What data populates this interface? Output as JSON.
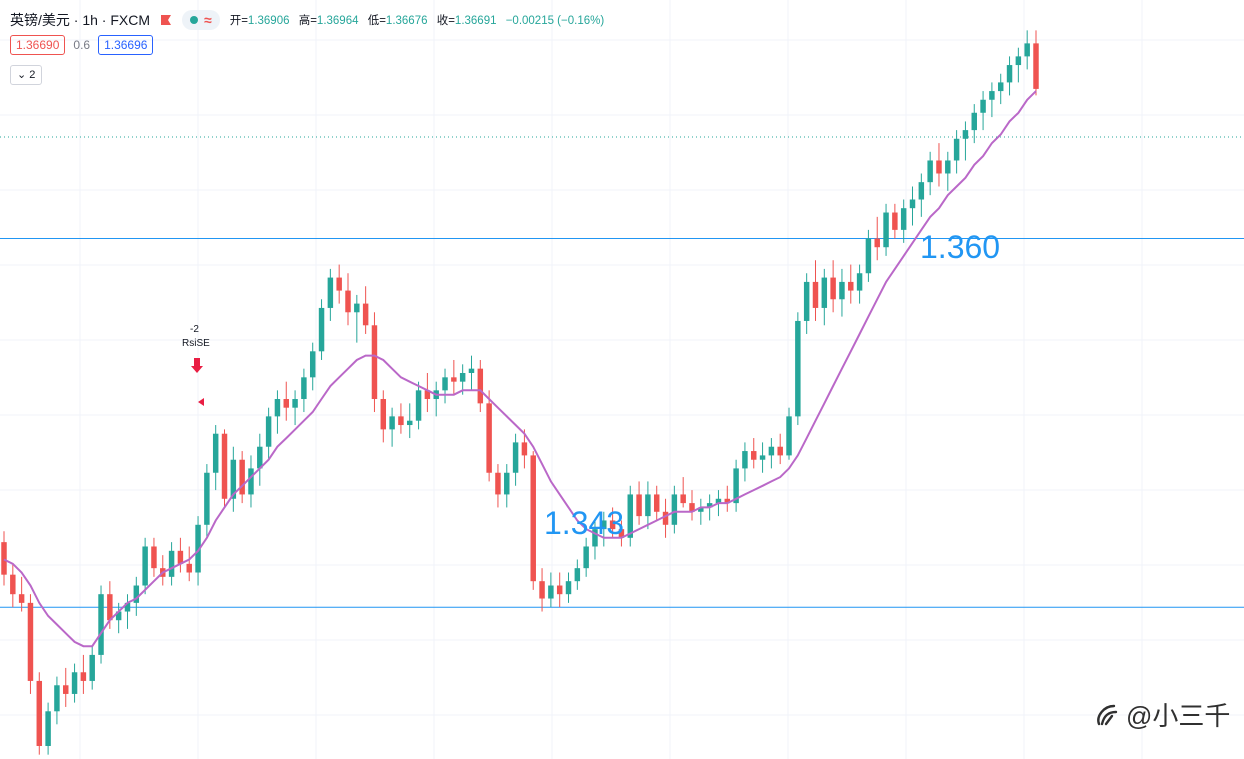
{
  "header": {
    "symbol": "英镑/美元 · 1h · FXCM",
    "ohlc": [
      {
        "label": "开=",
        "value": "1.36906"
      },
      {
        "label": "高=",
        "value": "1.36964"
      },
      {
        "label": "低=",
        "value": "1.36676"
      },
      {
        "label": "收=",
        "value": "1.36691"
      },
      {
        "label": "",
        "value": "−0.00215 (−0.16%)"
      }
    ],
    "bid": "1.36690",
    "spread": "0.6",
    "ask": "1.36696",
    "indicator_toggle": "2",
    "flag_icon": "red-flag-icon",
    "compare_icon": "wave-icon"
  },
  "annotations": {
    "resistance_label": "1.360",
    "support_label": "1.343",
    "signal_count": "-2",
    "signal_name": "RsiSE"
  },
  "watermark": "@小三千",
  "colors": {
    "up": "#26a69a",
    "down": "#ef5350",
    "ma": "#ba68c8",
    "level": "#2196f3",
    "grid": "#f0f3fa"
  },
  "chart_data": {
    "type": "candlestick",
    "series": [
      {
        "name": "",
        "ohlc": [
          [
            1.346,
            1.3465,
            1.344,
            1.3445
          ],
          [
            1.3445,
            1.345,
            1.343,
            1.3436
          ],
          [
            1.3436,
            1.3444,
            1.3428,
            1.3432
          ],
          [
            1.3432,
            1.3436,
            1.339,
            1.3396
          ],
          [
            1.3396,
            1.34,
            1.3362,
            1.3366
          ],
          [
            1.3366,
            1.3386,
            1.3362,
            1.3382
          ],
          [
            1.3382,
            1.3398,
            1.3376,
            1.3394
          ],
          [
            1.3394,
            1.3402,
            1.3384,
            1.339
          ],
          [
            1.339,
            1.3404,
            1.3386,
            1.34
          ],
          [
            1.34,
            1.3408,
            1.339,
            1.3396
          ],
          [
            1.3396,
            1.3412,
            1.3392,
            1.3408
          ],
          [
            1.3408,
            1.344,
            1.3404,
            1.3436
          ],
          [
            1.3436,
            1.3442,
            1.342,
            1.3424
          ],
          [
            1.3424,
            1.3432,
            1.3418,
            1.3428
          ],
          [
            1.3428,
            1.3436,
            1.342,
            1.3432
          ],
          [
            1.3432,
            1.3444,
            1.3426,
            1.344
          ],
          [
            1.344,
            1.3462,
            1.3436,
            1.3458
          ],
          [
            1.3458,
            1.3462,
            1.3444,
            1.3448
          ],
          [
            1.3448,
            1.3454,
            1.344,
            1.3444
          ],
          [
            1.3444,
            1.346,
            1.344,
            1.3456
          ],
          [
            1.3456,
            1.3462,
            1.3446,
            1.345
          ],
          [
            1.345,
            1.3458,
            1.3442,
            1.3446
          ],
          [
            1.3446,
            1.3472,
            1.344,
            1.3468
          ],
          [
            1.3468,
            1.3496,
            1.3462,
            1.3492
          ],
          [
            1.3492,
            1.3514,
            1.3484,
            1.351
          ],
          [
            1.351,
            1.3512,
            1.3476,
            1.348
          ],
          [
            1.348,
            1.3504,
            1.3474,
            1.3498
          ],
          [
            1.3498,
            1.3502,
            1.3478,
            1.3482
          ],
          [
            1.3482,
            1.35,
            1.3476,
            1.3494
          ],
          [
            1.3494,
            1.351,
            1.3486,
            1.3504
          ],
          [
            1.3504,
            1.3522,
            1.3498,
            1.3518
          ],
          [
            1.3518,
            1.353,
            1.351,
            1.3526
          ],
          [
            1.3526,
            1.3534,
            1.3516,
            1.3522
          ],
          [
            1.3522,
            1.353,
            1.3514,
            1.3526
          ],
          [
            1.3526,
            1.354,
            1.352,
            1.3536
          ],
          [
            1.3536,
            1.3552,
            1.353,
            1.3548
          ],
          [
            1.3548,
            1.3572,
            1.3544,
            1.3568
          ],
          [
            1.3568,
            1.3586,
            1.3562,
            1.3582
          ],
          [
            1.3582,
            1.3588,
            1.357,
            1.3576
          ],
          [
            1.3576,
            1.3584,
            1.356,
            1.3566
          ],
          [
            1.3566,
            1.3574,
            1.3552,
            1.357
          ],
          [
            1.357,
            1.3578,
            1.3556,
            1.356
          ],
          [
            1.356,
            1.3566,
            1.352,
            1.3526
          ],
          [
            1.3526,
            1.353,
            1.3506,
            1.3512
          ],
          [
            1.3512,
            1.3522,
            1.3504,
            1.3518
          ],
          [
            1.3518,
            1.3524,
            1.351,
            1.3514
          ],
          [
            1.3514,
            1.3524,
            1.3508,
            1.3516
          ],
          [
            1.3516,
            1.3534,
            1.3512,
            1.353
          ],
          [
            1.353,
            1.3538,
            1.352,
            1.3526
          ],
          [
            1.3526,
            1.3534,
            1.3518,
            1.353
          ],
          [
            1.353,
            1.354,
            1.3524,
            1.3536
          ],
          [
            1.3536,
            1.3544,
            1.3528,
            1.3534
          ],
          [
            1.3534,
            1.3542,
            1.3528,
            1.3538
          ],
          [
            1.3538,
            1.3546,
            1.353,
            1.354
          ],
          [
            1.354,
            1.3544,
            1.352,
            1.3524
          ],
          [
            1.3524,
            1.353,
            1.3488,
            1.3492
          ],
          [
            1.3492,
            1.3496,
            1.3476,
            1.3482
          ],
          [
            1.3482,
            1.3496,
            1.3476,
            1.3492
          ],
          [
            1.3492,
            1.351,
            1.3486,
            1.3506
          ],
          [
            1.3506,
            1.3512,
            1.3494,
            1.35
          ],
          [
            1.35,
            1.3502,
            1.3438,
            1.3442
          ],
          [
            1.3442,
            1.3448,
            1.3428,
            1.3434
          ],
          [
            1.3434,
            1.3446,
            1.343,
            1.344
          ],
          [
            1.344,
            1.3446,
            1.343,
            1.3436
          ],
          [
            1.3436,
            1.3446,
            1.3432,
            1.3442
          ],
          [
            1.3442,
            1.3452,
            1.3438,
            1.3448
          ],
          [
            1.3448,
            1.3462,
            1.3444,
            1.3458
          ],
          [
            1.3458,
            1.347,
            1.3452,
            1.3466
          ],
          [
            1.3466,
            1.3474,
            1.3458,
            1.347
          ],
          [
            1.347,
            1.3476,
            1.3462,
            1.3466
          ],
          [
            1.3466,
            1.347,
            1.3458,
            1.3462
          ],
          [
            1.3462,
            1.3486,
            1.3458,
            1.3482
          ],
          [
            1.3482,
            1.3488,
            1.3468,
            1.3472
          ],
          [
            1.3472,
            1.3488,
            1.3466,
            1.3482
          ],
          [
            1.3482,
            1.3486,
            1.347,
            1.3474
          ],
          [
            1.3474,
            1.348,
            1.3462,
            1.3468
          ],
          [
            1.3468,
            1.3486,
            1.3464,
            1.3482
          ],
          [
            1.3482,
            1.349,
            1.3476,
            1.3478
          ],
          [
            1.3478,
            1.3484,
            1.347,
            1.3474
          ],
          [
            1.3474,
            1.348,
            1.3468,
            1.3476
          ],
          [
            1.3476,
            1.3482,
            1.347,
            1.3478
          ],
          [
            1.3478,
            1.3484,
            1.3472,
            1.348
          ],
          [
            1.348,
            1.3486,
            1.3474,
            1.3478
          ],
          [
            1.3478,
            1.3498,
            1.3474,
            1.3494
          ],
          [
            1.3494,
            1.3506,
            1.3488,
            1.3502
          ],
          [
            1.3502,
            1.3508,
            1.3494,
            1.3498
          ],
          [
            1.3498,
            1.3506,
            1.3492,
            1.35
          ],
          [
            1.35,
            1.3508,
            1.3494,
            1.3504
          ],
          [
            1.3504,
            1.351,
            1.3496,
            1.35
          ],
          [
            1.35,
            1.3522,
            1.3498,
            1.3518
          ],
          [
            1.3518,
            1.3566,
            1.3514,
            1.3562
          ],
          [
            1.3562,
            1.3584,
            1.3556,
            1.358
          ],
          [
            1.358,
            1.359,
            1.3562,
            1.3568
          ],
          [
            1.3568,
            1.3586,
            1.356,
            1.3582
          ],
          [
            1.3582,
            1.359,
            1.3566,
            1.3572
          ],
          [
            1.3572,
            1.3586,
            1.3564,
            1.358
          ],
          [
            1.358,
            1.3588,
            1.357,
            1.3576
          ],
          [
            1.3576,
            1.3588,
            1.357,
            1.3584
          ],
          [
            1.3584,
            1.3604,
            1.358,
            1.36
          ],
          [
            1.36,
            1.361,
            1.359,
            1.3596
          ],
          [
            1.3596,
            1.3616,
            1.3592,
            1.3612
          ],
          [
            1.3612,
            1.3616,
            1.36,
            1.3604
          ],
          [
            1.3604,
            1.3618,
            1.3598,
            1.3614
          ],
          [
            1.3614,
            1.3624,
            1.3606,
            1.3618
          ],
          [
            1.3618,
            1.363,
            1.361,
            1.3626
          ],
          [
            1.3626,
            1.364,
            1.362,
            1.3636
          ],
          [
            1.3636,
            1.3644,
            1.3624,
            1.363
          ],
          [
            1.363,
            1.364,
            1.3622,
            1.3636
          ],
          [
            1.3636,
            1.365,
            1.363,
            1.3646
          ],
          [
            1.3646,
            1.3654,
            1.3636,
            1.365
          ],
          [
            1.365,
            1.3662,
            1.3644,
            1.3658
          ],
          [
            1.3658,
            1.3668,
            1.365,
            1.3664
          ],
          [
            1.3664,
            1.3672,
            1.3656,
            1.3668
          ],
          [
            1.3668,
            1.3676,
            1.3662,
            1.3672
          ],
          [
            1.3672,
            1.3684,
            1.3666,
            1.368
          ],
          [
            1.368,
            1.3688,
            1.3672,
            1.3684
          ],
          [
            1.3684,
            1.3696,
            1.3678,
            1.369
          ],
          [
            1.369,
            1.3696,
            1.3666,
            1.3669
          ]
        ]
      },
      {
        "name": "",
        "values": [
          1.3452,
          1.345,
          1.3446,
          1.344,
          1.3432,
          1.3426,
          1.3422,
          1.3418,
          1.3414,
          1.3412,
          1.3412,
          1.3418,
          1.3424,
          1.3428,
          1.3432,
          1.3434,
          1.3438,
          1.3442,
          1.3446,
          1.3448,
          1.345,
          1.3452,
          1.3456,
          1.3462,
          1.347,
          1.3476,
          1.3482,
          1.3486,
          1.349,
          1.3494,
          1.3498,
          1.3504,
          1.3508,
          1.3512,
          1.3516,
          1.352,
          1.3526,
          1.3532,
          1.3536,
          1.354,
          1.3544,
          1.3546,
          1.3546,
          1.3544,
          1.354,
          1.3536,
          1.3534,
          1.3532,
          1.353,
          1.3528,
          1.3528,
          1.3528,
          1.353,
          1.353,
          1.353,
          1.3526,
          1.3522,
          1.3518,
          1.3514,
          1.351,
          1.3504,
          1.3496,
          1.3488,
          1.3482,
          1.3476,
          1.347,
          1.3466,
          1.3464,
          1.3462,
          1.3462,
          1.3462,
          1.3464,
          1.3466,
          1.3468,
          1.347,
          1.3472,
          1.3474,
          1.3474,
          1.3474,
          1.3476,
          1.3476,
          1.3478,
          1.3478,
          1.348,
          1.3482,
          1.3484,
          1.3486,
          1.3488,
          1.349,
          1.3494,
          1.35,
          1.3508,
          1.3516,
          1.3524,
          1.3532,
          1.354,
          1.3548,
          1.3556,
          1.3564,
          1.3572,
          1.358,
          1.3586,
          1.3592,
          1.3598,
          1.3604,
          1.361,
          1.3614,
          1.362,
          1.3624,
          1.3628,
          1.3634,
          1.3638,
          1.3644,
          1.3648,
          1.3654,
          1.3658,
          1.3664,
          1.3668
        ]
      }
    ],
    "levels": [
      1.36,
      1.343
    ],
    "last_price": 1.3669,
    "ylim": [
      1.336,
      1.371
    ]
  }
}
